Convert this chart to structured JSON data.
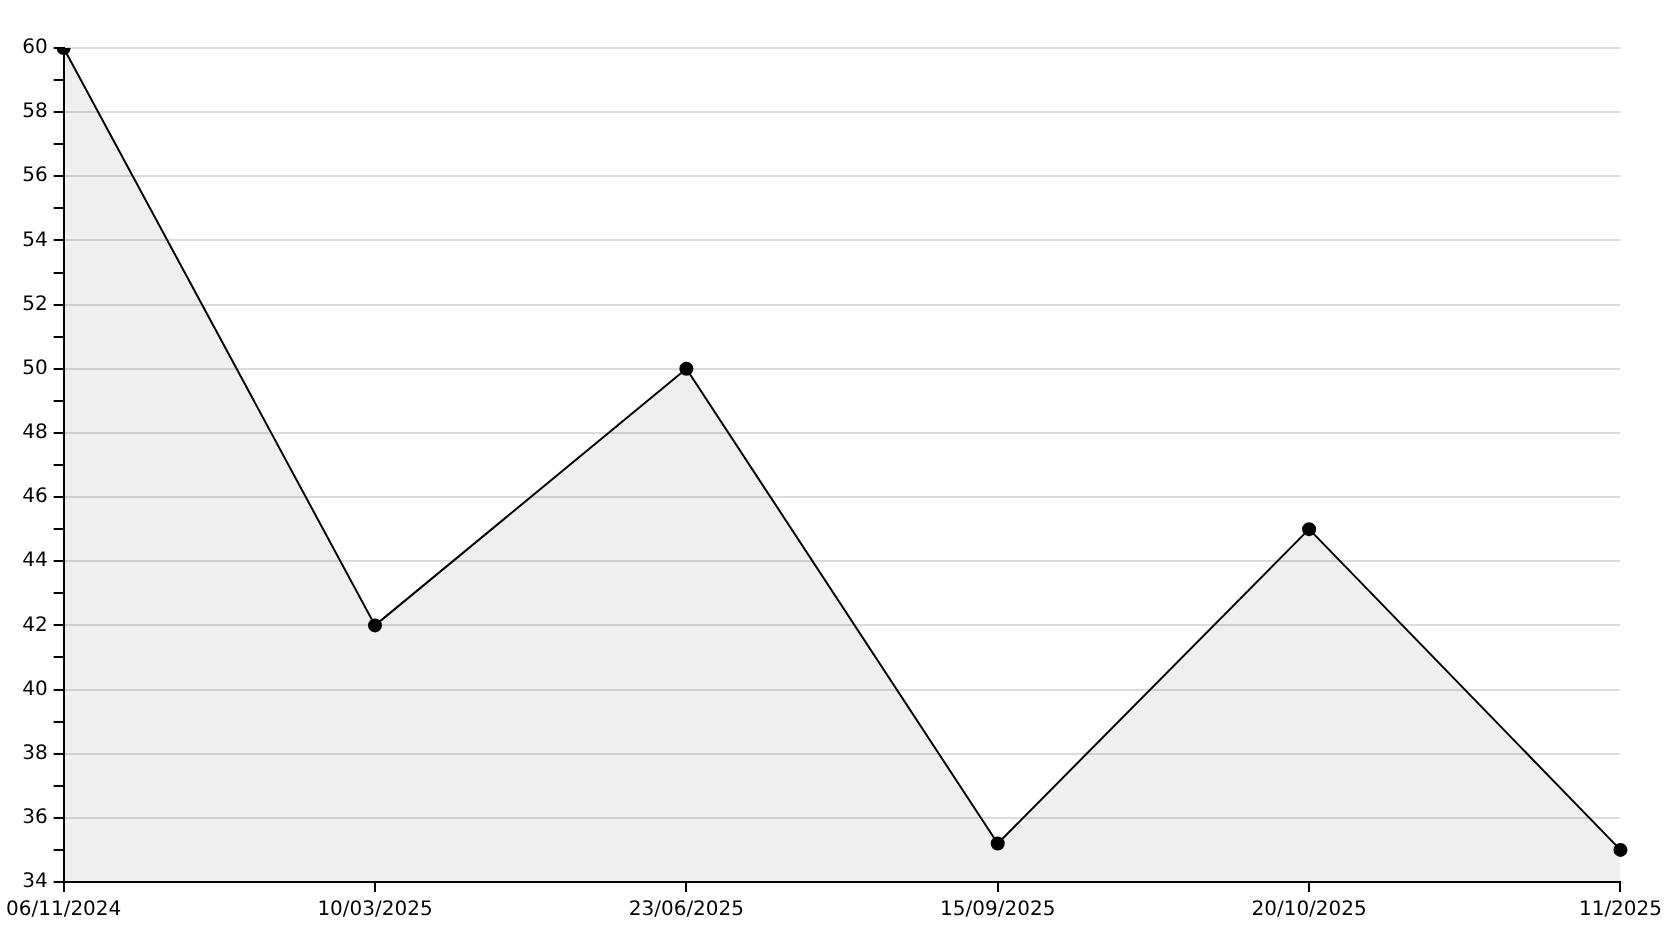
{
  "chart_data": {
    "type": "area",
    "categories": [
      "06/11/2024",
      "10/03/2025",
      "23/06/2025",
      "15/09/2025",
      "20/10/2025",
      "11/2025"
    ],
    "series": [
      {
        "color": "#000000",
        "values": [
          60,
          42,
          50,
          35.2,
          45,
          35
        ]
      }
    ],
    "ylim": [
      34,
      60
    ],
    "yticks": [
      34,
      {
        "value": 35,
        "label": null
      },
      36,
      {
        "value": 37,
        "label": null
      },
      38,
      {
        "value": 39,
        "label": null
      },
      40,
      {
        "value": 41,
        "label": null
      },
      42,
      {
        "value": 43,
        "label": null
      },
      44,
      {
        "value": 45,
        "label": null
      },
      46,
      {
        "value": 47,
        "label": null
      },
      48,
      {
        "value": 49,
        "label": null
      },
      50,
      {
        "value": 51,
        "label": null
      },
      52,
      {
        "value": 53,
        "label": null
      },
      54,
      {
        "value": 55,
        "label": null
      },
      56,
      {
        "value": 57,
        "label": null
      },
      58,
      {
        "value": 59,
        "label": null
      },
      60
    ],
    "grid": "y",
    "legend": false,
    "marker": "circle",
    "line_style": "solid"
  }
}
